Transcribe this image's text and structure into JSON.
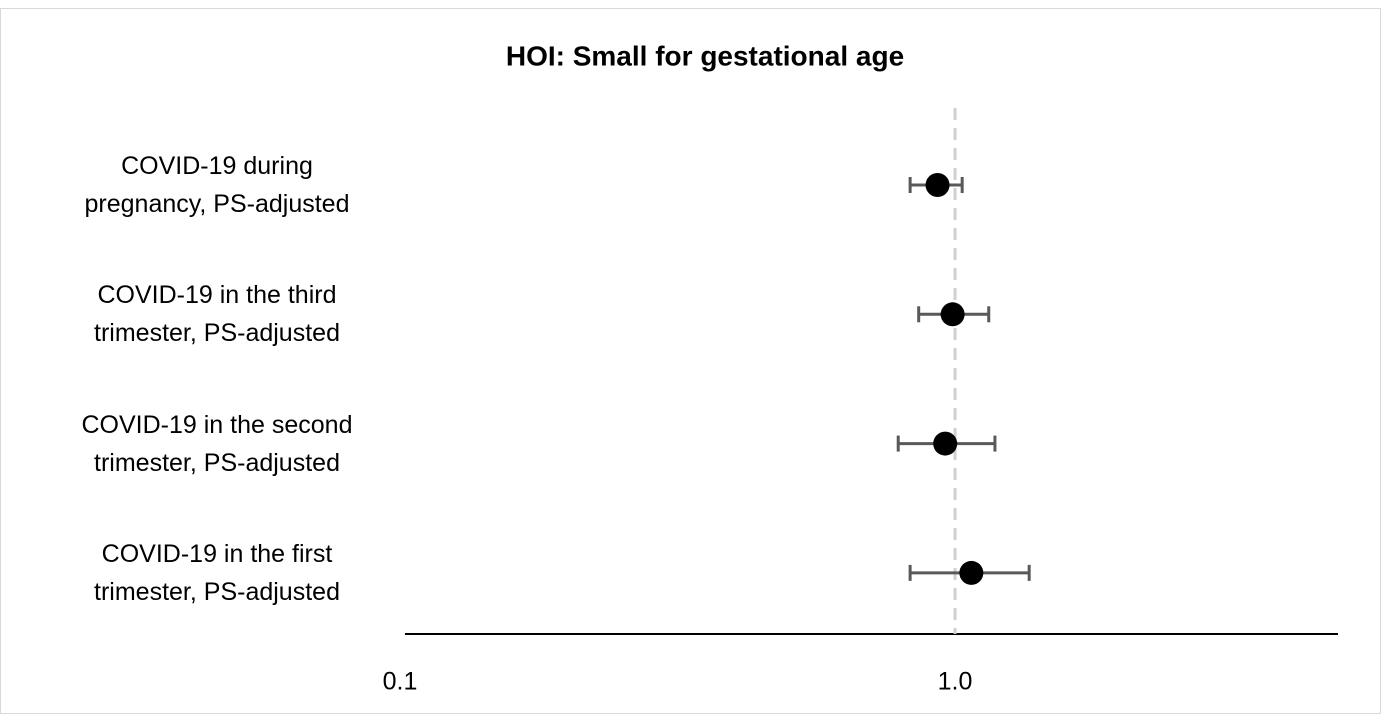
{
  "chart_data": {
    "type": "forest",
    "title": "HOI: Small for gestational age",
    "categories": [
      "COVID-19 during pregnancy, PS-adjusted",
      "COVID-19 in the third trimester, PS-adjusted",
      "COVID-19 in the second trimester, PS-adjusted",
      "COVID-19 in the first trimester, PS-adjusted"
    ],
    "values": [
      0.93,
      0.99,
      0.96,
      1.07
    ],
    "lower": [
      0.83,
      0.86,
      0.79,
      0.83
    ],
    "upper": [
      1.03,
      1.15,
      1.18,
      1.36
    ],
    "color": "#000000",
    "error_color": "#595959",
    "log_x": true,
    "xlim": [
      0.1,
      5
    ],
    "xticks": [
      0.1,
      {
        "value": 1,
        "label": "1.0"
      }
    ],
    "reference_line": 1
  }
}
